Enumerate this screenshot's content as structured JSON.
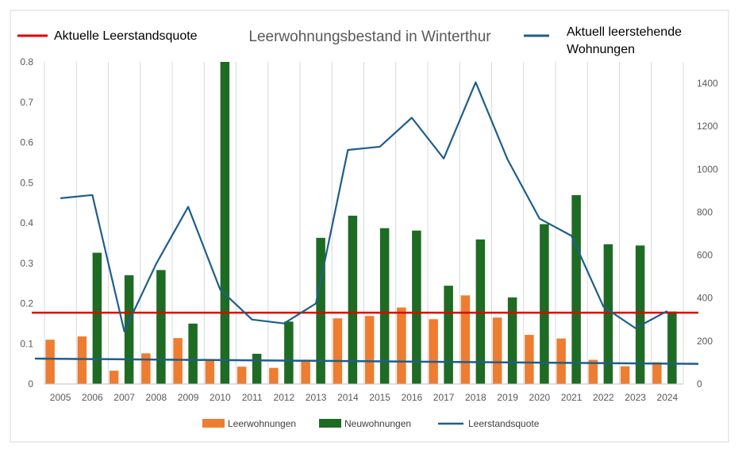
{
  "chart_data": {
    "type": "bar",
    "title": "Leerwohnungsbestand in Winterthur",
    "categories": [
      "2005",
      "2006",
      "2007",
      "2008",
      "2009",
      "2010",
      "2011",
      "2012",
      "2013",
      "2014",
      "2015",
      "2016",
      "2017",
      "2018",
      "2019",
      "2020",
      "2021",
      "2022",
      "2023",
      "2024"
    ],
    "y_left": {
      "ylim": [
        0,
        0.8
      ],
      "ticks": [
        "0",
        "0.1",
        "0.2",
        "0.3",
        "0.4",
        "0.5",
        "0.6",
        "0.7",
        "0.8"
      ]
    },
    "y_right": {
      "ylim": [
        0,
        1500
      ],
      "ticks": [
        "0",
        "200",
        "400",
        "600",
        "800",
        "1000",
        "1200",
        "1400"
      ]
    },
    "grid": "vertical",
    "legend_position": "bottom",
    "series": [
      {
        "name": "Leerwohnungen",
        "type": "bar",
        "axis": "left",
        "color": "#ED7D31",
        "values": [
          0.11,
          0.118,
          0.033,
          0.076,
          0.114,
          0.062,
          0.043,
          0.04,
          0.057,
          0.163,
          0.169,
          0.19,
          0.161,
          0.22,
          0.165,
          0.122,
          0.113,
          0.06,
          0.044,
          0.054
        ]
      },
      {
        "name": "Neuwohnungen",
        "type": "bar",
        "axis": "left",
        "color": "#1E6B24",
        "values": [
          null,
          0.326,
          0.27,
          0.283,
          0.15,
          0.8,
          0.075,
          0.155,
          0.363,
          0.418,
          0.387,
          0.381,
          0.244,
          0.359,
          0.215,
          0.397,
          0.469,
          0.347,
          0.344,
          0.18
        ]
      },
      {
        "name": "Leerstandsquote",
        "type": "line",
        "axis": "right",
        "color": "#1F5E8A",
        "values": [
          865,
          880,
          245,
          560,
          825,
          440,
          300,
          282,
          375,
          1090,
          1105,
          1240,
          1050,
          1405,
          1045,
          770,
          690,
          360,
          260,
          340
        ]
      }
    ],
    "reference_lines": [
      {
        "name": "Aktuelle Leerstandsquote",
        "axis": "left",
        "value": 0.177,
        "color": "#E00000"
      },
      {
        "name": "Aktuell leerstehende Wohnungen",
        "axis": "left",
        "from": 0.063,
        "to": 0.05,
        "color": "#1F5E8A"
      }
    ],
    "top_legend": [
      {
        "label": "Aktuelle Leerstandsquote",
        "color": "#E00000"
      },
      {
        "label": "Aktuell leerstehende Wohnungen",
        "lines": [
          "Aktuell leerstehende",
          "Wohnungen"
        ],
        "color": "#1F5E8A"
      }
    ]
  }
}
